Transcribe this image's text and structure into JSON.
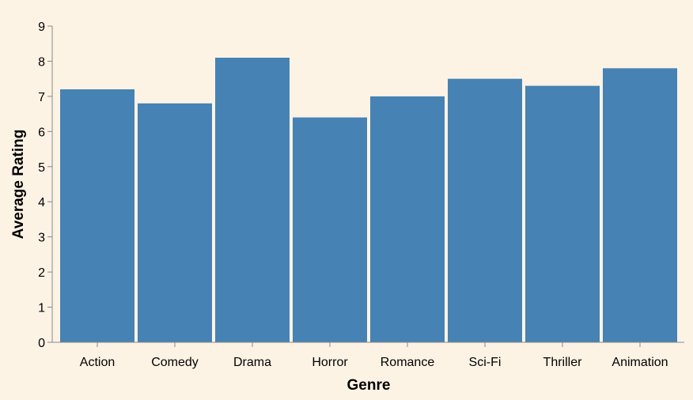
{
  "chart_data": {
    "type": "bar",
    "categories": [
      "Action",
      "Comedy",
      "Drama",
      "Horror",
      "Romance",
      "Sci-Fi",
      "Thriller",
      "Animation"
    ],
    "values": [
      7.2,
      6.8,
      8.1,
      6.4,
      7.0,
      7.5,
      7.3,
      7.8
    ],
    "xlabel": "Genre",
    "ylabel": "Average Rating",
    "ylim": [
      0,
      9
    ],
    "yticks": [
      "0",
      "1",
      "2",
      "3",
      "4",
      "5",
      "6",
      "7",
      "8",
      "9"
    ],
    "grid": false,
    "colors": {
      "bar": "#4682b4",
      "axis": "#888888",
      "background": "#fdf3e5"
    }
  }
}
